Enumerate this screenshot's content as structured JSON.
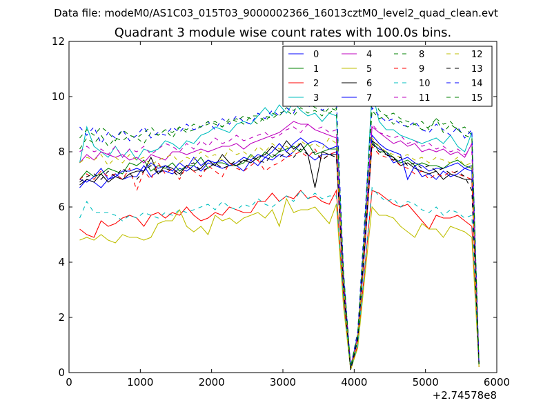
{
  "suptitle": "Data file: modeM0/AS1C03_015T03_9000002366_16013cztM0_level2_quad_clean.evt",
  "chart_data": {
    "type": "line",
    "title": "Quadrant 3 module wise count rates with 100.0s bins.",
    "xlabel": "",
    "ylabel": "",
    "x_offset_label": "+2.74578e8",
    "xlim": [
      0,
      6000
    ],
    "ylim": [
      0,
      12
    ],
    "xticks": [
      "0",
      "1000",
      "2000",
      "3000",
      "4000",
      "5000",
      "6000"
    ],
    "yticks": [
      "0",
      "2",
      "4",
      "6",
      "8",
      "10",
      "12"
    ],
    "grid": false,
    "legend": {
      "placement": "top-right",
      "columns": 4
    },
    "x": [
      150,
      250,
      350,
      450,
      550,
      650,
      750,
      850,
      950,
      1050,
      1150,
      1250,
      1350,
      1450,
      1550,
      1650,
      1750,
      1850,
      1950,
      2050,
      2150,
      2250,
      2350,
      2450,
      2550,
      2650,
      2750,
      2850,
      2950,
      3050,
      3150,
      3250,
      3350,
      3450,
      3550,
      3650,
      3750,
      3850,
      3950,
      4050,
      4150,
      4250,
      4350,
      4450,
      4550,
      4650,
      4750,
      4850,
      4950,
      5050,
      5150,
      5250,
      5350,
      5450,
      5550,
      5650,
      5750
    ],
    "series": [
      {
        "name": "0",
        "color": "#0000ff",
        "dashed": false,
        "values": [
          6.7,
          7.0,
          6.9,
          6.7,
          7.0,
          7.2,
          7.0,
          7.1,
          7.1,
          7.5,
          7.1,
          7.3,
          7.3,
          7.2,
          7.4,
          7.3,
          7.5,
          7.3,
          7.6,
          7.5,
          7.4,
          7.5,
          7.5,
          7.3,
          7.7,
          7.5,
          7.8,
          7.7,
          7.9,
          7.8,
          8.0,
          8.3,
          7.9,
          7.7,
          7.9,
          7.9,
          8.0,
          3.0,
          0.1,
          1.2,
          4.5,
          8.3,
          8.1,
          8.0,
          7.6,
          7.7,
          7.8,
          7.6,
          7.5,
          7.3,
          7.4,
          7.4,
          7.5,
          7.6,
          7.4,
          7.5,
          0.3
        ]
      },
      {
        "name": "1",
        "color": "#008000",
        "dashed": false,
        "values": [
          7.0,
          7.3,
          7.1,
          7.2,
          7.4,
          7.3,
          7.2,
          7.6,
          7.5,
          7.7,
          7.3,
          7.5,
          7.4,
          7.6,
          7.3,
          7.5,
          7.5,
          7.8,
          7.4,
          7.6,
          7.6,
          7.5,
          7.5,
          7.6,
          7.9,
          7.7,
          8.0,
          7.8,
          8.0,
          8.1,
          8.2,
          8.0,
          8.3,
          7.9,
          8.0,
          8.1,
          8.1,
          3.2,
          0.2,
          1.3,
          4.8,
          8.4,
          8.0,
          8.0,
          7.8,
          7.6,
          7.7,
          7.5,
          7.6,
          7.5,
          7.5,
          7.4,
          7.6,
          7.7,
          7.5,
          7.4,
          0.3
        ]
      },
      {
        "name": "2",
        "color": "#ff0000",
        "dashed": false,
        "values": [
          5.2,
          5.0,
          4.9,
          5.5,
          5.3,
          5.4,
          5.6,
          5.7,
          5.6,
          5.3,
          5.7,
          5.8,
          5.6,
          5.8,
          5.7,
          6.0,
          5.7,
          5.5,
          5.6,
          5.8,
          5.7,
          6.0,
          5.9,
          5.8,
          5.8,
          6.2,
          6.2,
          6.5,
          6.2,
          6.4,
          6.3,
          6.6,
          6.3,
          6.4,
          6.2,
          6.1,
          6.6,
          2.6,
          0.1,
          1.0,
          3.8,
          6.6,
          6.5,
          6.3,
          6.1,
          6.0,
          6.1,
          5.8,
          5.5,
          5.2,
          5.7,
          5.6,
          5.6,
          5.7,
          5.5,
          5.3,
          0.2
        ]
      },
      {
        "name": "3",
        "color": "#00bfbf",
        "dashed": false,
        "values": [
          7.6,
          8.9,
          8.2,
          8.0,
          7.8,
          8.2,
          7.8,
          8.1,
          7.7,
          8.1,
          8.0,
          8.1,
          8.4,
          8.3,
          8.1,
          8.4,
          8.3,
          8.6,
          8.7,
          8.9,
          8.8,
          8.7,
          9.0,
          9.1,
          9.0,
          9.3,
          9.6,
          9.3,
          9.7,
          9.4,
          9.8,
          9.5,
          9.3,
          9.4,
          9.1,
          9.4,
          9.3,
          3.6,
          0.2,
          1.4,
          5.4,
          10.2,
          9.1,
          8.8,
          8.8,
          8.6,
          8.5,
          8.4,
          8.3,
          8.4,
          8.5,
          8.3,
          8.6,
          8.2,
          8.0,
          8.7,
          0.3
        ]
      },
      {
        "name": "4",
        "color": "#bf00bf",
        "dashed": false,
        "values": [
          7.6,
          7.9,
          7.7,
          8.0,
          7.9,
          7.8,
          7.9,
          7.7,
          7.8,
          7.6,
          7.9,
          7.8,
          7.7,
          8.0,
          8.0,
          7.9,
          8.0,
          8.1,
          8.0,
          8.1,
          8.2,
          8.2,
          8.3,
          8.1,
          8.3,
          8.4,
          8.5,
          8.6,
          8.7,
          8.9,
          9.1,
          9.0,
          9.0,
          8.8,
          8.7,
          8.6,
          8.5,
          3.3,
          0.2,
          1.3,
          5.0,
          8.9,
          8.7,
          8.5,
          8.3,
          8.4,
          8.2,
          8.3,
          8.0,
          8.1,
          8.0,
          8.1,
          7.9,
          8.0,
          7.8,
          8.3,
          0.3
        ]
      },
      {
        "name": "5",
        "color": "#bfbf00",
        "dashed": false,
        "values": [
          4.8,
          4.9,
          4.8,
          5.0,
          4.8,
          4.7,
          5.0,
          4.9,
          4.9,
          4.8,
          4.9,
          5.4,
          5.5,
          5.5,
          5.9,
          5.3,
          5.1,
          5.3,
          5.0,
          5.7,
          5.5,
          5.6,
          5.4,
          5.6,
          5.7,
          5.8,
          5.6,
          5.9,
          5.3,
          6.3,
          5.8,
          5.9,
          5.9,
          6.0,
          5.7,
          5.4,
          6.1,
          2.4,
          0.1,
          0.9,
          3.5,
          6.0,
          5.7,
          5.7,
          5.6,
          5.3,
          5.1,
          4.9,
          5.4,
          5.2,
          5.2,
          4.9,
          5.3,
          5.2,
          5.1,
          4.9,
          0.2
        ]
      },
      {
        "name": "6",
        "color": "#000000",
        "dashed": false,
        "values": [
          6.8,
          7.0,
          6.9,
          7.2,
          6.9,
          7.1,
          7.0,
          7.2,
          7.3,
          7.3,
          7.8,
          7.2,
          7.5,
          7.4,
          7.2,
          7.5,
          7.3,
          7.4,
          7.7,
          7.5,
          7.9,
          7.6,
          7.5,
          7.7,
          7.6,
          7.8,
          7.9,
          8.2,
          8.0,
          8.4,
          8.1,
          8.3,
          7.9,
          6.7,
          8.0,
          7.9,
          7.9,
          3.1,
          0.1,
          1.2,
          4.7,
          8.4,
          8.2,
          7.9,
          7.8,
          7.5,
          7.6,
          7.4,
          7.3,
          7.2,
          7.3,
          7.0,
          7.2,
          7.1,
          7.0,
          7.0,
          0.3
        ]
      },
      {
        "name": "7",
        "color": "#0000ff",
        "dashed": false,
        "values": [
          7.0,
          6.9,
          7.1,
          7.4,
          7.0,
          7.1,
          7.3,
          7.3,
          7.4,
          7.3,
          7.6,
          7.4,
          7.5,
          7.3,
          7.6,
          7.4,
          7.8,
          7.5,
          7.7,
          7.6,
          7.7,
          7.5,
          7.6,
          7.8,
          7.7,
          7.9,
          7.8,
          8.0,
          8.3,
          8.0,
          8.3,
          8.5,
          8.3,
          8.4,
          8.3,
          8.1,
          8.2,
          3.2,
          0.2,
          1.3,
          4.9,
          8.6,
          8.3,
          8.1,
          8.0,
          7.9,
          7.0,
          7.5,
          7.1,
          7.2,
          7.0,
          7.3,
          7.1,
          7.2,
          7.4,
          7.3,
          0.3
        ]
      },
      {
        "name": "8",
        "color": "#008000",
        "dashed": true,
        "values": [
          8.1,
          8.5,
          8.3,
          8.6,
          8.2,
          8.5,
          8.4,
          8.6,
          8.5,
          8.3,
          8.7,
          8.6,
          8.8,
          8.5,
          8.9,
          8.7,
          8.8,
          8.9,
          9.0,
          9.1,
          8.9,
          9.1,
          9.2,
          9.0,
          9.3,
          9.3,
          9.1,
          9.4,
          9.3,
          9.6,
          9.5,
          9.7,
          9.8,
          9.6,
          9.5,
          9.4,
          9.6,
          3.6,
          0.2,
          1.4,
          5.5,
          10.0,
          9.5,
          9.3,
          9.4,
          9.2,
          9.1,
          9.0,
          9.1,
          8.8,
          9.2,
          9.0,
          9.1,
          8.8,
          8.9,
          8.6,
          0.3
        ]
      },
      {
        "name": "9",
        "color": "#ff0000",
        "dashed": true,
        "values": [
          7.0,
          7.2,
          7.0,
          7.3,
          7.1,
          7.2,
          7.0,
          7.4,
          6.6,
          7.3,
          7.0,
          7.6,
          7.2,
          7.4,
          7.0,
          7.5,
          7.3,
          7.1,
          7.5,
          7.3,
          7.1,
          7.6,
          7.4,
          7.3,
          7.5,
          7.7,
          7.3,
          7.5,
          7.6,
          7.8,
          7.9,
          8.0,
          7.8,
          8.1,
          7.7,
          7.9,
          8.0,
          3.1,
          0.1,
          1.2,
          4.6,
          8.2,
          7.9,
          7.8,
          7.7,
          7.5,
          7.4,
          7.2,
          7.3,
          7.0,
          7.2,
          7.1,
          7.3,
          7.2,
          7.1,
          7.0,
          0.3
        ]
      },
      {
        "name": "10",
        "color": "#00bfbf",
        "dashed": true,
        "values": [
          5.6,
          6.2,
          5.8,
          5.8,
          5.8,
          5.7,
          5.5,
          5.7,
          5.6,
          5.8,
          5.7,
          5.6,
          5.8,
          5.7,
          5.9,
          5.8,
          5.9,
          6.0,
          6.1,
          5.9,
          6.2,
          6.0,
          5.9,
          6.1,
          6.0,
          6.3,
          6.1,
          6.0,
          6.2,
          6.4,
          6.2,
          6.6,
          6.3,
          6.5,
          6.3,
          6.4,
          6.4,
          2.7,
          0.1,
          1.0,
          3.9,
          6.7,
          6.4,
          6.2,
          6.3,
          6.0,
          6.2,
          6.1,
          5.9,
          5.8,
          6.0,
          5.7,
          5.9,
          5.8,
          5.6,
          5.7,
          0.2
        ]
      },
      {
        "name": "11",
        "color": "#bf00bf",
        "dashed": true,
        "values": [
          8.0,
          8.2,
          8.0,
          8.1,
          7.9,
          8.2,
          7.8,
          8.1,
          8.0,
          8.2,
          7.9,
          8.1,
          8.3,
          8.2,
          8.0,
          8.3,
          8.1,
          8.4,
          8.2,
          8.5,
          8.3,
          8.4,
          8.6,
          8.4,
          8.5,
          8.6,
          8.7,
          8.5,
          8.6,
          8.8,
          8.9,
          8.7,
          9.0,
          8.8,
          8.9,
          8.7,
          8.8,
          3.4,
          0.2,
          1.3,
          5.1,
          9.0,
          8.7,
          8.6,
          8.5,
          8.6,
          8.3,
          8.4,
          8.2,
          8.3,
          8.1,
          8.2,
          8.0,
          8.1,
          7.9,
          8.0,
          0.3
        ]
      },
      {
        "name": "12",
        "color": "#bfbf00",
        "dashed": true,
        "values": [
          7.6,
          7.8,
          7.7,
          7.9,
          7.5,
          7.8,
          7.6,
          7.9,
          7.7,
          7.8,
          7.5,
          7.7,
          7.8,
          7.9,
          7.6,
          7.8,
          7.7,
          8.0,
          7.8,
          7.9,
          7.7,
          8.1,
          7.9,
          8.0,
          7.8,
          8.2,
          8.0,
          8.3,
          8.1,
          8.2,
          8.0,
          8.4,
          8.2,
          8.3,
          8.1,
          8.5,
          8.3,
          3.3,
          0.1,
          1.2,
          4.9,
          8.5,
          8.2,
          8.0,
          7.9,
          7.8,
          7.9,
          7.7,
          7.8,
          7.6,
          7.8,
          7.7,
          7.6,
          7.8,
          7.5,
          7.6,
          0.3
        ]
      },
      {
        "name": "13",
        "color": "#000000",
        "dashed": true,
        "values": [
          6.9,
          7.1,
          7.2,
          7.0,
          7.3,
          7.1,
          7.4,
          7.2,
          7.0,
          7.3,
          7.5,
          7.2,
          7.4,
          7.3,
          7.1,
          7.5,
          7.6,
          7.3,
          7.4,
          7.6,
          7.4,
          7.5,
          7.7,
          7.6,
          7.8,
          7.7,
          7.6,
          7.9,
          7.8,
          8.0,
          7.8,
          8.1,
          7.9,
          8.0,
          7.7,
          7.9,
          7.8,
          3.1,
          0.1,
          1.2,
          4.7,
          8.3,
          8.0,
          7.9,
          7.7,
          7.8,
          7.5,
          7.6,
          7.4,
          7.5,
          7.3,
          7.4,
          7.2,
          7.3,
          7.1,
          6.6,
          0.3
        ]
      },
      {
        "name": "14",
        "color": "#0000ff",
        "dashed": true,
        "values": [
          8.9,
          8.6,
          8.9,
          8.3,
          8.7,
          8.5,
          8.8,
          8.4,
          8.6,
          8.9,
          8.5,
          8.7,
          8.6,
          8.9,
          8.7,
          9.0,
          8.8,
          8.9,
          9.1,
          8.8,
          9.2,
          9.0,
          9.3,
          9.1,
          9.0,
          9.4,
          9.2,
          9.5,
          9.3,
          9.6,
          9.4,
          10.0,
          9.6,
          9.8,
          9.5,
          9.7,
          9.9,
          3.7,
          0.2,
          1.5,
          5.7,
          9.6,
          9.3,
          9.1,
          9.2,
          9.0,
          8.9,
          9.1,
          8.8,
          8.7,
          9.0,
          8.8,
          8.6,
          8.9,
          8.5,
          8.8,
          0.3
        ]
      },
      {
        "name": "15",
        "color": "#008000",
        "dashed": true,
        "values": [
          8.5,
          8.8,
          8.6,
          8.9,
          8.7,
          8.4,
          8.8,
          8.6,
          8.5,
          8.7,
          8.9,
          8.6,
          8.8,
          8.7,
          8.9,
          8.8,
          9.0,
          8.9,
          9.1,
          9.0,
          8.9,
          9.2,
          9.1,
          9.3,
          9.2,
          9.0,
          9.3,
          9.2,
          9.4,
          9.5,
          9.3,
          9.6,
          9.4,
          9.5,
          9.3,
          9.6,
          9.5,
          3.6,
          0.2,
          1.4,
          5.4,
          9.5,
          9.2,
          9.3,
          9.0,
          9.1,
          8.9,
          9.0,
          8.8,
          8.9,
          9.2,
          8.7,
          9.0,
          8.8,
          8.6,
          8.5,
          0.3
        ]
      }
    ]
  }
}
